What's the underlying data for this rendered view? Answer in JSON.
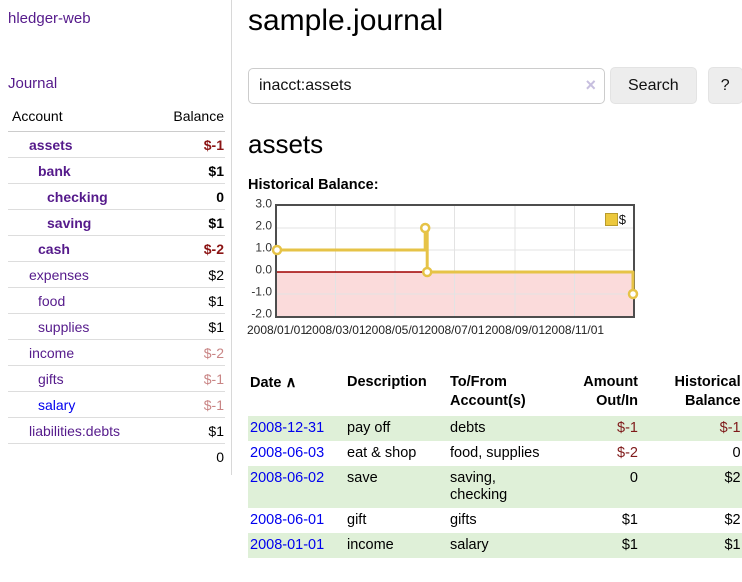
{
  "sidebar": {
    "app_title": "hledger-web",
    "journal_link": "Journal",
    "accounts_table": {
      "account_header": "Account",
      "balance_header": "Balance",
      "rows": [
        {
          "name": "assets",
          "level": 1,
          "bold": true,
          "balance": "$-1",
          "neg": "strong"
        },
        {
          "name": "bank",
          "level": 2,
          "bold": true,
          "balance": "$1"
        },
        {
          "name": "checking",
          "level": 3,
          "bold": true,
          "balance": "0"
        },
        {
          "name": "saving",
          "level": 3,
          "bold": true,
          "balance": "$1"
        },
        {
          "name": "cash",
          "level": 2,
          "bold": true,
          "balance": "$-2",
          "neg": "strong"
        },
        {
          "name": "expenses",
          "level": 1,
          "bold": false,
          "balance": "$2"
        },
        {
          "name": "food",
          "level": 2,
          "bold": false,
          "balance": "$1"
        },
        {
          "name": "supplies",
          "level": 2,
          "bold": false,
          "balance": "$1"
        },
        {
          "name": "income",
          "level": 1,
          "bold": false,
          "balance": "$-2",
          "neg": "soft"
        },
        {
          "name": "gifts",
          "level": 2,
          "bold": false,
          "balance": "$-1",
          "neg": "soft"
        },
        {
          "name": "salary",
          "level": 2,
          "bold": false,
          "balance": "$-1",
          "neg": "soft",
          "link_color": "blue"
        },
        {
          "name": "liabilities:debts",
          "level": 1,
          "bold": false,
          "balance": "$1"
        }
      ],
      "total": "0"
    }
  },
  "header": {
    "title": "sample.journal"
  },
  "search": {
    "query": "inacct:assets",
    "clear_icon": "×",
    "button_label": "Search",
    "help_label": "?"
  },
  "main": {
    "account_heading": "assets",
    "chart_title": "Historical Balance:"
  },
  "chart_data": {
    "type": "line",
    "title": "Historical Balance:",
    "legend": "$",
    "ylim": [
      -2,
      3
    ],
    "yticks": [
      "3.0",
      "2.0",
      "1.0",
      "0.0",
      "-1.0",
      "-2.0"
    ],
    "xticks": [
      {
        "label": "2008/01/01",
        "x": 0.0
      },
      {
        "label": "2008/03/01",
        "x": 0.1644
      },
      {
        "label": "2008/05/01",
        "x": 0.3315
      },
      {
        "label": "2008/07/01",
        "x": 0.4986
      },
      {
        "label": "2008/09/01",
        "x": 0.6685
      },
      {
        "label": "2008/11/01",
        "x": 0.8356
      }
    ],
    "series": [
      {
        "name": "$",
        "color": "#e6c347",
        "step": true,
        "points": [
          {
            "date": "2008-01-01",
            "x": 0.0,
            "y": 1
          },
          {
            "date": "2008-06-01",
            "x": 0.4164,
            "y": 2
          },
          {
            "date": "2008-06-03",
            "x": 0.4219,
            "y": 0
          },
          {
            "date": "2008-12-31",
            "x": 1.0,
            "y": -1
          }
        ]
      }
    ],
    "negative_fill": "#fbdbdb",
    "zero_line_color": "#a00000",
    "grid_color": "#e3e3e3"
  },
  "register": {
    "headers": {
      "date": "Date",
      "sort_icon": "∧",
      "description": "Description",
      "accounts": "To/From Account(s)",
      "amount": "Amount Out/In",
      "balance": "Historical Balance"
    },
    "rows": [
      {
        "date": "2008-12-31",
        "description": "pay off",
        "accounts": "debts",
        "amount": "$-1",
        "balance": "$-1"
      },
      {
        "date": "2008-06-03",
        "description": "eat & shop",
        "accounts": "food, supplies",
        "amount": "$-2",
        "balance": "0"
      },
      {
        "date": "2008-06-02",
        "description": "save",
        "accounts": "saving, checking",
        "amount": "0",
        "balance": "$2"
      },
      {
        "date": "2008-06-01",
        "description": "gift",
        "accounts": "gifts",
        "amount": "$1",
        "balance": "$2"
      },
      {
        "date": "2008-01-01",
        "description": "income",
        "accounts": "salary",
        "amount": "$1",
        "balance": "$1"
      }
    ]
  }
}
